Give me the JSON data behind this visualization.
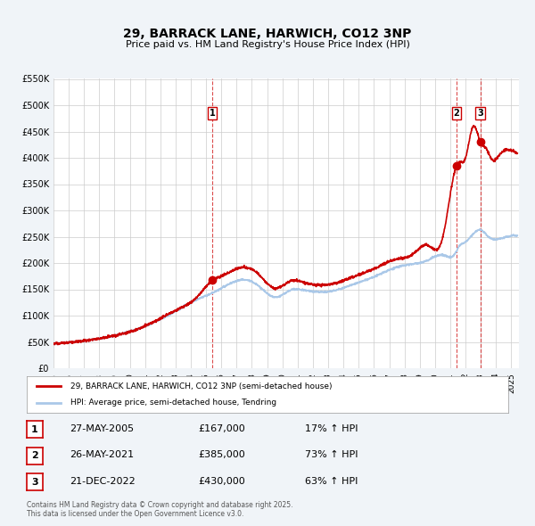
{
  "title": "29, BARRACK LANE, HARWICH, CO12 3NP",
  "subtitle": "Price paid vs. HM Land Registry's House Price Index (HPI)",
  "legend_property": "29, BARRACK LANE, HARWICH, CO12 3NP (semi-detached house)",
  "legend_hpi": "HPI: Average price, semi-detached house, Tendring",
  "property_color": "#cc0000",
  "hpi_color": "#aac8e8",
  "background_color": "#f0f4f8",
  "plot_bg_color": "#ffffff",
  "ylim": [
    0,
    550000
  ],
  "yticks": [
    0,
    50000,
    100000,
    150000,
    200000,
    250000,
    300000,
    350000,
    400000,
    450000,
    500000,
    550000
  ],
  "ytick_labels": [
    "£0",
    "£50K",
    "£100K",
    "£150K",
    "£200K",
    "£250K",
    "£300K",
    "£350K",
    "£400K",
    "£450K",
    "£500K",
    "£550K"
  ],
  "xlim_start": 1995.0,
  "xlim_end": 2025.5,
  "xticks": [
    1995,
    1996,
    1997,
    1998,
    1999,
    2000,
    2001,
    2002,
    2003,
    2004,
    2005,
    2006,
    2007,
    2008,
    2009,
    2010,
    2011,
    2012,
    2013,
    2014,
    2015,
    2016,
    2017,
    2018,
    2019,
    2020,
    2021,
    2022,
    2023,
    2024,
    2025
  ],
  "sale_events": [
    {
      "label": "1",
      "date_num": 2005.41,
      "price": 167000,
      "pct": "17%",
      "date_str": "27-MAY-2005"
    },
    {
      "label": "2",
      "date_num": 2021.4,
      "price": 385000,
      "pct": "73%",
      "date_str": "26-MAY-2021"
    },
    {
      "label": "3",
      "date_num": 2022.97,
      "price": 430000,
      "pct": "63%",
      "date_str": "21-DEC-2022"
    }
  ],
  "footer": "Contains HM Land Registry data © Crown copyright and database right 2025.\nThis data is licensed under the Open Government Licence v3.0."
}
